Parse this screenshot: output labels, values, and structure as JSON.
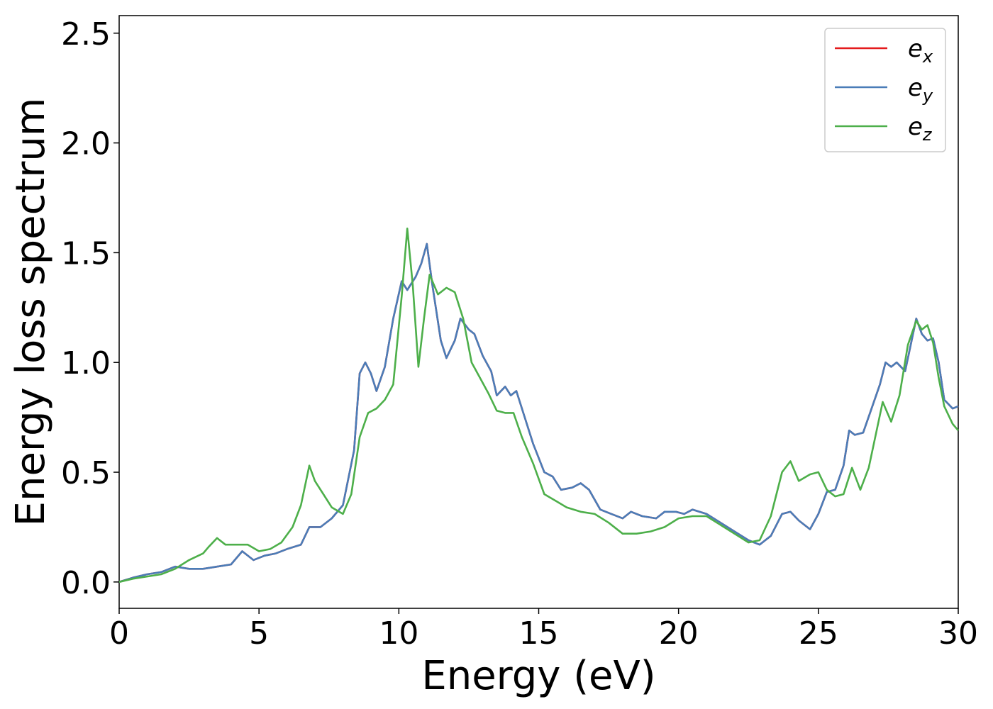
{
  "chart_data": {
    "type": "line",
    "xlabel": "Energy (eV)",
    "ylabel": "Energy loss spectrum",
    "xlim": [
      0,
      30
    ],
    "ylim": [
      -0.12,
      2.58
    ],
    "x_ticks": [
      "0",
      "5",
      "10",
      "15",
      "20",
      "25",
      "30"
    ],
    "y_ticks": [
      "0.0",
      "0.5",
      "1.0",
      "1.5",
      "2.0",
      "2.5"
    ],
    "grid": false,
    "legend_position": "top-right",
    "series": [
      {
        "name_base": "e",
        "name_sub": "x",
        "color": "#e41a1c",
        "points": [
          [
            0,
            0
          ],
          [
            0.5,
            0.02
          ],
          [
            1,
            0.035
          ],
          [
            1.5,
            0.045
          ],
          [
            2,
            0.07
          ],
          [
            2.5,
            0.06
          ],
          [
            3,
            0.06
          ],
          [
            3.5,
            0.07
          ],
          [
            4,
            0.08
          ],
          [
            4.4,
            0.14
          ],
          [
            4.8,
            0.1
          ],
          [
            5.2,
            0.12
          ],
          [
            5.6,
            0.13
          ],
          [
            6,
            0.15
          ],
          [
            6.5,
            0.17
          ],
          [
            6.8,
            0.25
          ],
          [
            7.2,
            0.25
          ],
          [
            7.6,
            0.29
          ],
          [
            8,
            0.35
          ],
          [
            8.4,
            0.6
          ],
          [
            8.6,
            0.95
          ],
          [
            8.8,
            1.0
          ],
          [
            9.0,
            0.95
          ],
          [
            9.2,
            0.87
          ],
          [
            9.5,
            0.98
          ],
          [
            9.8,
            1.2
          ],
          [
            10.1,
            1.37
          ],
          [
            10.3,
            1.33
          ],
          [
            10.6,
            1.39
          ],
          [
            10.8,
            1.45
          ],
          [
            11.0,
            1.54
          ],
          [
            11.2,
            1.35
          ],
          [
            11.5,
            1.1
          ],
          [
            11.7,
            1.02
          ],
          [
            12.0,
            1.1
          ],
          [
            12.2,
            1.2
          ],
          [
            12.5,
            1.15
          ],
          [
            12.7,
            1.13
          ],
          [
            13.0,
            1.03
          ],
          [
            13.3,
            0.96
          ],
          [
            13.5,
            0.85
          ],
          [
            13.8,
            0.89
          ],
          [
            14.0,
            0.85
          ],
          [
            14.2,
            0.87
          ],
          [
            14.5,
            0.75
          ],
          [
            14.8,
            0.63
          ],
          [
            15.2,
            0.5
          ],
          [
            15.5,
            0.48
          ],
          [
            15.8,
            0.42
          ],
          [
            16.2,
            0.43
          ],
          [
            16.5,
            0.45
          ],
          [
            16.8,
            0.42
          ],
          [
            17.2,
            0.33
          ],
          [
            17.6,
            0.31
          ],
          [
            18.0,
            0.29
          ],
          [
            18.3,
            0.32
          ],
          [
            18.7,
            0.3
          ],
          [
            19.2,
            0.29
          ],
          [
            19.5,
            0.32
          ],
          [
            19.9,
            0.32
          ],
          [
            20.2,
            0.31
          ],
          [
            20.5,
            0.33
          ],
          [
            21.0,
            0.31
          ],
          [
            21.5,
            0.27
          ],
          [
            22.0,
            0.23
          ],
          [
            22.5,
            0.19
          ],
          [
            22.9,
            0.17
          ],
          [
            23.3,
            0.21
          ],
          [
            23.7,
            0.31
          ],
          [
            24.0,
            0.32
          ],
          [
            24.3,
            0.28
          ],
          [
            24.7,
            0.24
          ],
          [
            25.0,
            0.31
          ],
          [
            25.3,
            0.41
          ],
          [
            25.6,
            0.42
          ],
          [
            25.9,
            0.53
          ],
          [
            26.1,
            0.69
          ],
          [
            26.3,
            0.67
          ],
          [
            26.6,
            0.68
          ],
          [
            26.9,
            0.79
          ],
          [
            27.2,
            0.9
          ],
          [
            27.4,
            1.0
          ],
          [
            27.6,
            0.98
          ],
          [
            27.8,
            1.0
          ],
          [
            28.1,
            0.96
          ],
          [
            28.3,
            1.08
          ],
          [
            28.5,
            1.2
          ],
          [
            28.7,
            1.13
          ],
          [
            28.9,
            1.1
          ],
          [
            29.1,
            1.11
          ],
          [
            29.3,
            1.0
          ],
          [
            29.5,
            0.83
          ],
          [
            29.8,
            0.79
          ],
          [
            30,
            0.8
          ]
        ]
      },
      {
        "name_base": "e",
        "name_sub": "y",
        "color": "#4a7db8",
        "points": [
          [
            0,
            0
          ],
          [
            0.5,
            0.02
          ],
          [
            1,
            0.035
          ],
          [
            1.5,
            0.045
          ],
          [
            2,
            0.07
          ],
          [
            2.5,
            0.06
          ],
          [
            3,
            0.06
          ],
          [
            3.5,
            0.07
          ],
          [
            4,
            0.08
          ],
          [
            4.4,
            0.14
          ],
          [
            4.8,
            0.1
          ],
          [
            5.2,
            0.12
          ],
          [
            5.6,
            0.13
          ],
          [
            6,
            0.15
          ],
          [
            6.5,
            0.17
          ],
          [
            6.8,
            0.25
          ],
          [
            7.2,
            0.25
          ],
          [
            7.6,
            0.29
          ],
          [
            8,
            0.35
          ],
          [
            8.4,
            0.6
          ],
          [
            8.6,
            0.95
          ],
          [
            8.8,
            1.0
          ],
          [
            9.0,
            0.95
          ],
          [
            9.2,
            0.87
          ],
          [
            9.5,
            0.98
          ],
          [
            9.8,
            1.2
          ],
          [
            10.1,
            1.37
          ],
          [
            10.3,
            1.33
          ],
          [
            10.6,
            1.39
          ],
          [
            10.8,
            1.45
          ],
          [
            11.0,
            1.54
          ],
          [
            11.2,
            1.35
          ],
          [
            11.5,
            1.1
          ],
          [
            11.7,
            1.02
          ],
          [
            12.0,
            1.1
          ],
          [
            12.2,
            1.2
          ],
          [
            12.5,
            1.15
          ],
          [
            12.7,
            1.13
          ],
          [
            13.0,
            1.03
          ],
          [
            13.3,
            0.96
          ],
          [
            13.5,
            0.85
          ],
          [
            13.8,
            0.89
          ],
          [
            14.0,
            0.85
          ],
          [
            14.2,
            0.87
          ],
          [
            14.5,
            0.75
          ],
          [
            14.8,
            0.63
          ],
          [
            15.2,
            0.5
          ],
          [
            15.5,
            0.48
          ],
          [
            15.8,
            0.42
          ],
          [
            16.2,
            0.43
          ],
          [
            16.5,
            0.45
          ],
          [
            16.8,
            0.42
          ],
          [
            17.2,
            0.33
          ],
          [
            17.6,
            0.31
          ],
          [
            18.0,
            0.29
          ],
          [
            18.3,
            0.32
          ],
          [
            18.7,
            0.3
          ],
          [
            19.2,
            0.29
          ],
          [
            19.5,
            0.32
          ],
          [
            19.9,
            0.32
          ],
          [
            20.2,
            0.31
          ],
          [
            20.5,
            0.33
          ],
          [
            21.0,
            0.31
          ],
          [
            21.5,
            0.27
          ],
          [
            22.0,
            0.23
          ],
          [
            22.5,
            0.19
          ],
          [
            22.9,
            0.17
          ],
          [
            23.3,
            0.21
          ],
          [
            23.7,
            0.31
          ],
          [
            24.0,
            0.32
          ],
          [
            24.3,
            0.28
          ],
          [
            24.7,
            0.24
          ],
          [
            25.0,
            0.31
          ],
          [
            25.3,
            0.41
          ],
          [
            25.6,
            0.42
          ],
          [
            25.9,
            0.53
          ],
          [
            26.1,
            0.69
          ],
          [
            26.3,
            0.67
          ],
          [
            26.6,
            0.68
          ],
          [
            26.9,
            0.79
          ],
          [
            27.2,
            0.9
          ],
          [
            27.4,
            1.0
          ],
          [
            27.6,
            0.98
          ],
          [
            27.8,
            1.0
          ],
          [
            28.1,
            0.96
          ],
          [
            28.3,
            1.08
          ],
          [
            28.5,
            1.2
          ],
          [
            28.7,
            1.13
          ],
          [
            28.9,
            1.1
          ],
          [
            29.1,
            1.11
          ],
          [
            29.3,
            1.0
          ],
          [
            29.5,
            0.83
          ],
          [
            29.8,
            0.79
          ],
          [
            30,
            0.8
          ]
        ]
      },
      {
        "name_base": "e",
        "name_sub": "z",
        "color": "#4daf4a",
        "points": [
          [
            0,
            0
          ],
          [
            0.5,
            0.015
          ],
          [
            1,
            0.025
          ],
          [
            1.5,
            0.035
          ],
          [
            2,
            0.06
          ],
          [
            2.5,
            0.1
          ],
          [
            3,
            0.13
          ],
          [
            3.2,
            0.16
          ],
          [
            3.5,
            0.2
          ],
          [
            3.8,
            0.17
          ],
          [
            4.2,
            0.17
          ],
          [
            4.6,
            0.17
          ],
          [
            5.0,
            0.14
          ],
          [
            5.4,
            0.15
          ],
          [
            5.8,
            0.18
          ],
          [
            6.2,
            0.25
          ],
          [
            6.5,
            0.35
          ],
          [
            6.8,
            0.53
          ],
          [
            7.0,
            0.46
          ],
          [
            7.3,
            0.4
          ],
          [
            7.6,
            0.34
          ],
          [
            8.0,
            0.31
          ],
          [
            8.3,
            0.4
          ],
          [
            8.6,
            0.66
          ],
          [
            8.9,
            0.77
          ],
          [
            9.2,
            0.79
          ],
          [
            9.5,
            0.83
          ],
          [
            9.8,
            0.9
          ],
          [
            10.1,
            1.3
          ],
          [
            10.3,
            1.61
          ],
          [
            10.5,
            1.35
          ],
          [
            10.7,
            0.98
          ],
          [
            10.9,
            1.2
          ],
          [
            11.1,
            1.4
          ],
          [
            11.4,
            1.31
          ],
          [
            11.7,
            1.34
          ],
          [
            12.0,
            1.32
          ],
          [
            12.3,
            1.2
          ],
          [
            12.6,
            1.0
          ],
          [
            12.9,
            0.93
          ],
          [
            13.2,
            0.86
          ],
          [
            13.5,
            0.78
          ],
          [
            13.8,
            0.77
          ],
          [
            14.1,
            0.77
          ],
          [
            14.4,
            0.66
          ],
          [
            14.8,
            0.54
          ],
          [
            15.2,
            0.4
          ],
          [
            15.6,
            0.37
          ],
          [
            16.0,
            0.34
          ],
          [
            16.5,
            0.32
          ],
          [
            17.0,
            0.31
          ],
          [
            17.5,
            0.27
          ],
          [
            18.0,
            0.22
          ],
          [
            18.5,
            0.22
          ],
          [
            19.0,
            0.23
          ],
          [
            19.5,
            0.25
          ],
          [
            20.0,
            0.29
          ],
          [
            20.5,
            0.3
          ],
          [
            21.0,
            0.3
          ],
          [
            21.5,
            0.26
          ],
          [
            22.0,
            0.22
          ],
          [
            22.5,
            0.18
          ],
          [
            22.9,
            0.19
          ],
          [
            23.3,
            0.3
          ],
          [
            23.7,
            0.5
          ],
          [
            24.0,
            0.55
          ],
          [
            24.3,
            0.46
          ],
          [
            24.7,
            0.49
          ],
          [
            25.0,
            0.5
          ],
          [
            25.3,
            0.42
          ],
          [
            25.6,
            0.39
          ],
          [
            25.9,
            0.4
          ],
          [
            26.2,
            0.52
          ],
          [
            26.5,
            0.42
          ],
          [
            26.8,
            0.52
          ],
          [
            27.1,
            0.7
          ],
          [
            27.3,
            0.82
          ],
          [
            27.6,
            0.73
          ],
          [
            27.9,
            0.85
          ],
          [
            28.2,
            1.08
          ],
          [
            28.5,
            1.19
          ],
          [
            28.7,
            1.15
          ],
          [
            28.9,
            1.17
          ],
          [
            29.1,
            1.09
          ],
          [
            29.3,
            0.93
          ],
          [
            29.5,
            0.8
          ],
          [
            29.8,
            0.72
          ],
          [
            30,
            0.69
          ]
        ]
      }
    ]
  }
}
